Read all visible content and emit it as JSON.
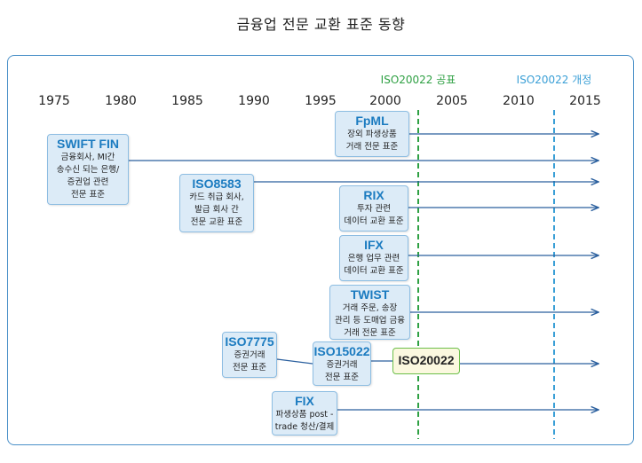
{
  "title": "금융업 전문 교환 표준 동향",
  "years": [
    "1975",
    "1980",
    "1985",
    "1990",
    "1995",
    "2000",
    "2005",
    "2010",
    "2015"
  ],
  "milestones": {
    "published": "ISO20022 공표",
    "revised": "ISO20022 개정"
  },
  "colors": {
    "panel_border": "#4a90c8",
    "box_fill": "#dcebf7",
    "standard_name": "#1b7bc0",
    "published_line": "#2ea043",
    "revised_line": "#3a9fd6",
    "iso20022_fill": "#fbf8df"
  },
  "standards": [
    {
      "id": "fpml",
      "name": "FpML",
      "desc": "장외 파생상품\n거래 전문 표준"
    },
    {
      "id": "swift",
      "name": "SWIFT FIN",
      "desc": "금융회사, MI간\n송수신 되는 은행/\n증권업 관련\n전문 표준"
    },
    {
      "id": "iso8583",
      "name": "ISO8583",
      "desc": "카드 취급 회사,\n발급 회사 간\n전문 교환 표준"
    },
    {
      "id": "rix",
      "name": "RIX",
      "desc": "투자 관련\n데이터 교환 표준"
    },
    {
      "id": "ifx",
      "name": "IFX",
      "desc": "은행 업무 관련\n데이터 교환 표준"
    },
    {
      "id": "twist",
      "name": "TWIST",
      "desc": "거래 주문, 송장\n관리 등 도매업 금융\n거래 전문 표준"
    },
    {
      "id": "iso7775",
      "name": "ISO7775",
      "desc": "증권거래\n전문 표준"
    },
    {
      "id": "iso15022",
      "name": "ISO15022",
      "desc": "증권거래\n전문 표준"
    },
    {
      "id": "fix",
      "name": "FIX",
      "desc": "파생상품 post -\ntrade 청산/결제"
    }
  ],
  "iso20022_label": "ISO20022"
}
